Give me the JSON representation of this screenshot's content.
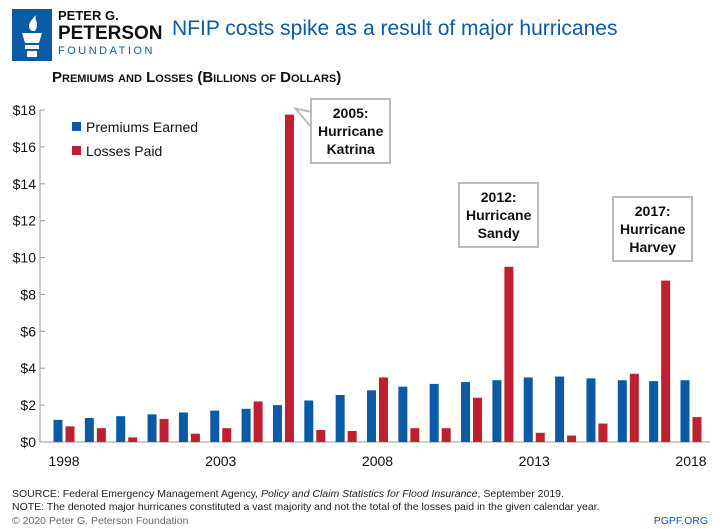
{
  "brand": {
    "line1": "PETER G.",
    "line2": "PETERSON",
    "line3": "FOUNDATION",
    "color": "#0b5aa6",
    "icon": "torch-icon"
  },
  "title": "NFIP costs spike as a result of major hurricanes",
  "chart_data": {
    "type": "bar",
    "title": "Premiums and Losses (Billions of Dollars)",
    "categories": [
      "1998",
      "1999",
      "2000",
      "2001",
      "2002",
      "2003",
      "2004",
      "2005",
      "2006",
      "2007",
      "2008",
      "2009",
      "2010",
      "2011",
      "2012",
      "2013",
      "2014",
      "2015",
      "2016",
      "2017",
      "2018"
    ],
    "x_tick_labels": [
      "1998",
      "2003",
      "2008",
      "2013",
      "2018"
    ],
    "y_tick_labels": [
      "$0",
      "$2",
      "$4",
      "$6",
      "$8",
      "$10",
      "$12",
      "$14",
      "$16",
      "$18"
    ],
    "ylim": [
      0,
      18
    ],
    "grid": false,
    "legend_placement": "top-left",
    "series": [
      {
        "name": "Premiums Earned",
        "color": "#0b5aa6",
        "values": [
          1.2,
          1.3,
          1.4,
          1.5,
          1.6,
          1.7,
          1.8,
          2.0,
          2.25,
          2.55,
          2.8,
          3.0,
          3.15,
          3.25,
          3.35,
          3.5,
          3.55,
          3.45,
          3.35,
          3.3,
          3.35
        ]
      },
      {
        "name": "Losses Paid",
        "color": "#c01f2f",
        "values": [
          0.85,
          0.75,
          0.25,
          1.25,
          0.45,
          0.75,
          2.2,
          17.75,
          0.65,
          0.6,
          3.5,
          0.75,
          0.75,
          2.4,
          9.5,
          0.5,
          0.35,
          1.0,
          3.7,
          8.75,
          1.35
        ]
      }
    ],
    "annotations": [
      {
        "year": "2005",
        "line1": "2005:",
        "line2": "Hurricane",
        "line3": "Katrina"
      },
      {
        "year": "2012",
        "line1": "2012:",
        "line2": "Hurricane",
        "line3": "Sandy"
      },
      {
        "year": "2017",
        "line1": "2017:",
        "line2": "Hurricane",
        "line3": "Harvey"
      }
    ]
  },
  "footer": {
    "source_prefix": "SOURCE: Federal Emergency Management Agency, ",
    "source_italic": "Policy and Claim Statistics for Flood Insurance",
    "source_suffix": ", September 2019.",
    "note": "NOTE: The denoted major hurricanes constituted a vast majority and not the total of the losses paid in the given calendar year.",
    "copyright": "© 2020 Peter G. Peterson Foundation",
    "site": "PGPF.ORG"
  }
}
